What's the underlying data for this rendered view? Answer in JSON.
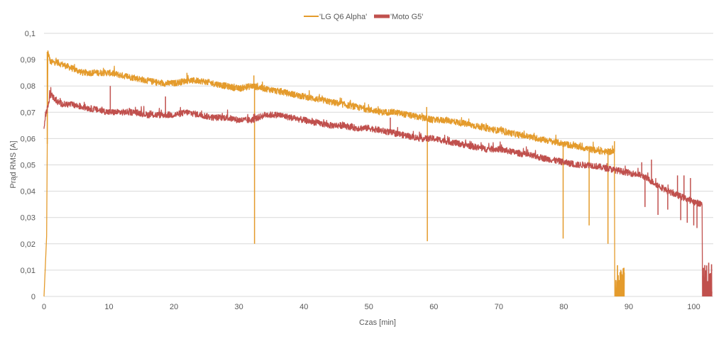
{
  "chart_data": {
    "type": "line",
    "title": "",
    "xlabel": "Czas [min]",
    "ylabel": "Prąd RMS [A]",
    "xlim": [
      0,
      103
    ],
    "ylim": [
      0,
      0.1
    ],
    "grid": true,
    "legend_position": "top-center",
    "x_ticks": [
      0,
      10,
      20,
      30,
      40,
      50,
      60,
      70,
      80,
      90,
      100
    ],
    "x_tick_labels": [
      "0",
      "10",
      "20",
      "30",
      "40",
      "50",
      "60",
      "70",
      "80",
      "90",
      "100"
    ],
    "y_ticks": [
      0,
      0.01,
      0.02,
      0.03,
      0.04,
      0.05,
      0.06,
      0.07,
      0.08,
      0.09,
      0.1
    ],
    "y_tick_labels": [
      "0",
      "0,01",
      "0,02",
      "0,03",
      "0,04",
      "0,05",
      "0,06",
      "0,07",
      "0,08",
      "0,09",
      "0,1"
    ],
    "series": [
      {
        "name": "'LG Q6 Alpha'",
        "color": "#E49B2C",
        "noise": 0.0012,
        "x": [
          0,
          0.2,
          0.4,
          0.6,
          1,
          2,
          3,
          4,
          5,
          6,
          8,
          10,
          12,
          14,
          16,
          18,
          20,
          22,
          24,
          26,
          28,
          30,
          32,
          34,
          36,
          38,
          40,
          42,
          44,
          46,
          48,
          50,
          52,
          54,
          56,
          58,
          60,
          62,
          64,
          66,
          68,
          70,
          72,
          74,
          76,
          78,
          80,
          82,
          84,
          86,
          87.8
        ],
        "y": [
          0,
          0.011,
          0.023,
          0.093,
          0.089,
          0.089,
          0.088,
          0.087,
          0.086,
          0.085,
          0.085,
          0.085,
          0.084,
          0.083,
          0.082,
          0.081,
          0.081,
          0.082,
          0.082,
          0.081,
          0.08,
          0.079,
          0.08,
          0.079,
          0.078,
          0.077,
          0.076,
          0.075,
          0.074,
          0.073,
          0.072,
          0.071,
          0.07,
          0.07,
          0.069,
          0.068,
          0.067,
          0.067,
          0.066,
          0.065,
          0.064,
          0.063,
          0.062,
          0.061,
          0.06,
          0.059,
          0.058,
          0.057,
          0.056,
          0.055,
          0.055
        ],
        "dips": [
          [
            32.4,
            0.02
          ],
          [
            59.0,
            0.021
          ],
          [
            79.9,
            0.022
          ],
          [
            83.9,
            0.027
          ],
          [
            86.8,
            0.02
          ]
        ],
        "spikes": [
          [
            0.5,
            0.093
          ],
          [
            22.0,
            0.085
          ],
          [
            32.3,
            0.084
          ],
          [
            58.9,
            0.072
          ],
          [
            87.8,
            0.059
          ]
        ],
        "tail": {
          "x_start": 88.0,
          "x_end": 89.3,
          "y_max": 0.012
        }
      },
      {
        "name": "'Moto G5'",
        "color": "#C0504D",
        "noise": 0.0012,
        "x": [
          0,
          0.2,
          0.6,
          1,
          2,
          3,
          4,
          6,
          8,
          10,
          12,
          14,
          16,
          18,
          20,
          22,
          24,
          26,
          28,
          30,
          32,
          34,
          36,
          38,
          40,
          42,
          44,
          46,
          48,
          50,
          52,
          54,
          56,
          58,
          60,
          62,
          64,
          66,
          68,
          70,
          72,
          74,
          76,
          78,
          80,
          82,
          84,
          86,
          88,
          90,
          92,
          94,
          96,
          98,
          100,
          101.3
        ],
        "y": [
          0.064,
          0.069,
          0.072,
          0.077,
          0.074,
          0.073,
          0.073,
          0.072,
          0.071,
          0.07,
          0.07,
          0.07,
          0.069,
          0.069,
          0.069,
          0.07,
          0.069,
          0.068,
          0.068,
          0.067,
          0.067,
          0.069,
          0.069,
          0.068,
          0.067,
          0.066,
          0.065,
          0.065,
          0.064,
          0.064,
          0.063,
          0.062,
          0.061,
          0.06,
          0.06,
          0.059,
          0.058,
          0.057,
          0.056,
          0.056,
          0.055,
          0.054,
          0.053,
          0.052,
          0.051,
          0.05,
          0.05,
          0.049,
          0.048,
          0.047,
          0.046,
          0.043,
          0.04,
          0.038,
          0.036,
          0.035
        ],
        "dips": [
          [
            92.5,
            0.034
          ],
          [
            94.5,
            0.031
          ],
          [
            96.0,
            0.033
          ],
          [
            98.0,
            0.029
          ],
          [
            99.0,
            0.028
          ],
          [
            100.0,
            0.027
          ],
          [
            100.5,
            0.026
          ]
        ],
        "spikes": [
          [
            10.2,
            0.08
          ],
          [
            18.7,
            0.076
          ],
          [
            53.3,
            0.068
          ],
          [
            92.0,
            0.051
          ],
          [
            93.5,
            0.052
          ],
          [
            97.5,
            0.046
          ],
          [
            98.5,
            0.046
          ],
          [
            99.5,
            0.045
          ]
        ],
        "tail": {
          "x_start": 101.4,
          "x_end": 102.8,
          "y_max": 0.013
        }
      }
    ]
  }
}
